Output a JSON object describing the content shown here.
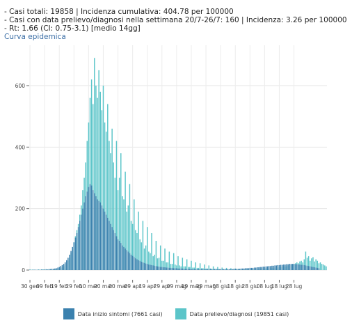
{
  "header": {
    "line1": "- Casi totali: 19858 | Incidenza cumulativa: 404.78 per 100000",
    "line2": "- Casi con data prelievo/diagnosi nella settimana 20/7-26/7: 160 | Incidenza: 3.26 per 100000",
    "line3": "- Rt: 1.66 (CI: 0.75-3.1) [medio 14gg]",
    "subtitle": "Curva epidemica"
  },
  "chart_data": {
    "type": "bar",
    "title": "Curva epidemica",
    "ylim": [
      0,
      720
    ],
    "yticks": [
      0,
      200,
      400,
      600
    ],
    "grid": true,
    "legend_position": "bottom",
    "x_tick_labels": [
      "30 gen",
      "09 feb",
      "19 feb",
      "29 feb",
      "10 mar",
      "20 mar",
      "30 mar",
      "09 apr",
      "19 apr",
      "29 apr",
      "09 mag",
      "19 mag",
      "29 mag",
      "08 giu",
      "18 giu",
      "28 giu",
      "08 lug",
      "18 lug",
      "28 lug"
    ],
    "start_date": "2020-01-30",
    "series": [
      {
        "name": "Data prelievo/diagnosi (19851 casi)",
        "color": "#5cc5c9",
        "values": [
          2,
          1,
          2,
          1,
          1,
          1,
          2,
          1,
          2,
          2,
          1,
          3,
          1,
          2,
          3,
          2,
          2,
          4,
          3,
          4,
          5,
          6,
          8,
          12,
          18,
          25,
          30,
          40,
          55,
          70,
          90,
          110,
          130,
          150,
          180,
          210,
          260,
          300,
          350,
          420,
          480,
          560,
          620,
          540,
          690,
          600,
          560,
          650,
          580,
          520,
          600,
          480,
          450,
          540,
          420,
          380,
          460,
          350,
          300,
          420,
          260,
          300,
          380,
          240,
          230,
          320,
          190,
          210,
          280,
          160,
          150,
          230,
          130,
          120,
          190,
          100,
          90,
          160,
          70,
          80,
          140,
          60,
          55,
          120,
          45,
          50,
          95,
          38,
          40,
          80,
          30,
          30,
          70,
          25,
          25,
          60,
          20,
          20,
          55,
          18,
          15,
          45,
          15,
          12,
          40,
          12,
          12,
          35,
          10,
          10,
          30,
          8,
          8,
          25,
          7,
          7,
          22,
          6,
          6,
          18,
          5,
          5,
          15,
          5,
          4,
          12,
          4,
          4,
          10,
          3,
          3,
          8,
          3,
          3,
          7,
          2,
          2,
          6,
          3,
          2,
          5,
          2,
          2,
          4,
          3,
          2,
          3,
          2,
          3,
          3,
          2,
          3,
          4,
          3,
          3,
          4,
          3,
          3,
          5,
          4,
          4,
          6,
          5,
          5,
          7,
          6,
          6,
          8,
          7,
          8,
          10,
          9,
          10,
          12,
          11,
          12,
          15,
          14,
          16,
          18,
          20,
          22,
          25,
          22,
          28,
          30,
          25,
          35,
          60,
          40,
          45,
          30,
          38,
          42,
          28,
          35,
          30,
          22,
          25,
          20,
          18,
          15,
          12
        ]
      },
      {
        "name": "Data inizio sintomi (7661 casi)",
        "color": "#3b81ae",
        "values": [
          1,
          0,
          1,
          1,
          1,
          1,
          1,
          1,
          2,
          1,
          2,
          2,
          2,
          3,
          3,
          4,
          4,
          5,
          6,
          8,
          10,
          13,
          16,
          20,
          25,
          32,
          40,
          50,
          62,
          75,
          90,
          105,
          120,
          140,
          160,
          180,
          200,
          220,
          240,
          255,
          270,
          280,
          275,
          260,
          250,
          240,
          230,
          225,
          220,
          210,
          200,
          190,
          180,
          170,
          160,
          150,
          140,
          130,
          120,
          110,
          100,
          95,
          88,
          80,
          75,
          70,
          65,
          60,
          55,
          50,
          46,
          42,
          38,
          35,
          32,
          30,
          27,
          25,
          23,
          21,
          20,
          18,
          17,
          16,
          15,
          14,
          13,
          12,
          11,
          10,
          10,
          9,
          9,
          8,
          8,
          7,
          7,
          7,
          6,
          6,
          6,
          5,
          5,
          5,
          5,
          4,
          4,
          4,
          4,
          4,
          3,
          3,
          3,
          3,
          3,
          3,
          3,
          3,
          3,
          3,
          3,
          3,
          3,
          3,
          3,
          3,
          3,
          3,
          3,
          3,
          3,
          3,
          3,
          3,
          3,
          3,
          3,
          3,
          3,
          4,
          4,
          4,
          4,
          4,
          5,
          5,
          5,
          6,
          6,
          6,
          7,
          7,
          7,
          8,
          8,
          9,
          9,
          10,
          10,
          11,
          11,
          12,
          12,
          13,
          13,
          14,
          14,
          15,
          15,
          16,
          16,
          17,
          17,
          18,
          18,
          19,
          19,
          20,
          20,
          20,
          20,
          19,
          19,
          18,
          18,
          17,
          17,
          16,
          15,
          14,
          13,
          12,
          11,
          10,
          9,
          8,
          7,
          6
        ]
      }
    ]
  }
}
